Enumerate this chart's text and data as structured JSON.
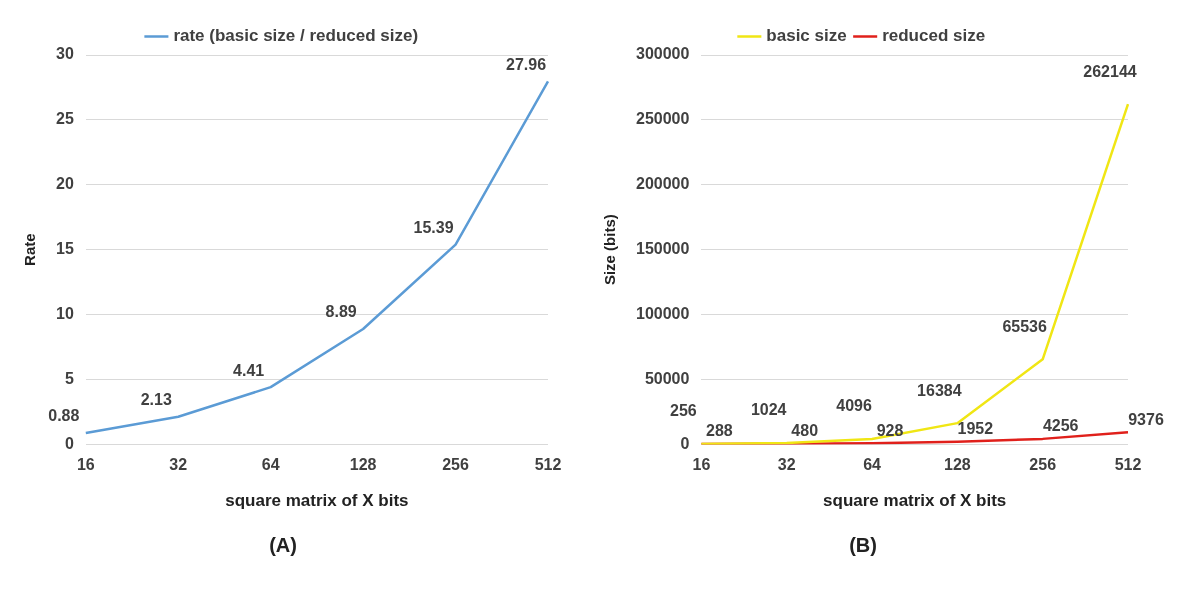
{
  "chart_data": [
    {
      "type": "line",
      "title": "(A)",
      "xlabel": "square matrix of X bits",
      "ylabel": "Rate",
      "categories": [
        "16",
        "32",
        "64",
        "128",
        "256",
        "512"
      ],
      "series": [
        {
          "name": "rate (basic size / reduced size)",
          "color": "#5b9bd5",
          "values": [
            0.88,
            2.13,
            4.41,
            8.89,
            15.39,
            27.96
          ]
        }
      ],
      "ylim": [
        0,
        30
      ],
      "yticks": [
        0,
        5,
        10,
        15,
        20,
        25,
        30
      ],
      "grid": "y",
      "legend": "top",
      "marker": "none",
      "data_labels": true
    },
    {
      "type": "line",
      "title": "(B)",
      "xlabel": "square matrix of X bits",
      "ylabel": "Size (bits)",
      "categories": [
        "16",
        "32",
        "64",
        "128",
        "256",
        "512"
      ],
      "series": [
        {
          "name": "basic size",
          "color": "#f0e614",
          "values": [
            256,
            1024,
            4096,
            16384,
            65536,
            262144
          ]
        },
        {
          "name": "reduced size",
          "color": "#e0201b",
          "values": [
            288,
            480,
            928,
            1952,
            4256,
            9376
          ]
        }
      ],
      "ylim": [
        0,
        300000
      ],
      "yticks": [
        0,
        50000,
        100000,
        150000,
        200000,
        250000,
        300000
      ],
      "grid": "y",
      "legend": "top",
      "marker": "none",
      "data_labels": true
    }
  ]
}
